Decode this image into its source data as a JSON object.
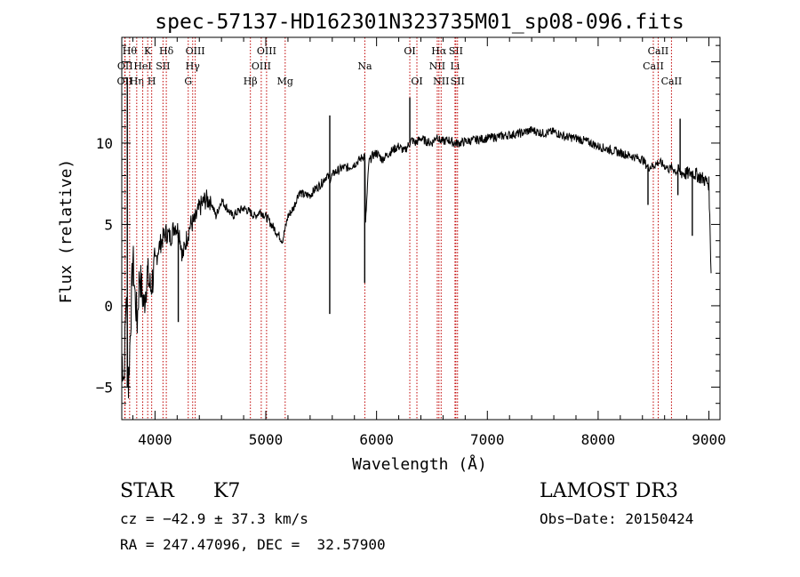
{
  "chart_data": {
    "type": "line",
    "title": "spec-57137-HD162301N323735M01_sp08-096.fits",
    "xlabel": "Wavelength (Å)",
    "ylabel": "Flux (relative)",
    "xlim": [
      3700,
      9100
    ],
    "ylim": [
      -7,
      16.5
    ],
    "xticks": [
      4000,
      5000,
      6000,
      7000,
      8000,
      9000
    ],
    "yticks": [
      -5,
      0,
      5,
      10
    ],
    "grid": false,
    "series": [
      {
        "name": "flux",
        "x": [
          3700,
          3720,
          3740,
          3760,
          3780,
          3800,
          3820,
          3840,
          3860,
          3880,
          3900,
          3930,
          3960,
          4000,
          4030,
          4060,
          4100,
          4140,
          4180,
          4220,
          4250,
          4280,
          4320,
          4360,
          4400,
          4450,
          4500,
          4550,
          4600,
          4650,
          4700,
          4750,
          4800,
          4850,
          4900,
          4950,
          5000,
          5050,
          5100,
          5150,
          5200,
          5250,
          5300,
          5350,
          5400,
          5450,
          5500,
          5550,
          5580,
          5620,
          5650,
          5700,
          5750,
          5800,
          5850,
          5895,
          5900,
          5930,
          5960,
          6000,
          6050,
          6100,
          6150,
          6200,
          6250,
          6300,
          6320,
          6350,
          6400,
          6450,
          6500,
          6550,
          6563,
          6600,
          6650,
          6700,
          6750,
          6800,
          6900,
          7000,
          7100,
          7200,
          7300,
          7400,
          7500,
          7600,
          7700,
          7800,
          7900,
          8000,
          8100,
          8200,
          8300,
          8400,
          8450,
          8498,
          8540,
          8560,
          8600,
          8640,
          8662,
          8700,
          8750,
          8800,
          8850,
          8900,
          8950,
          9000,
          9020
        ],
        "y": [
          -3,
          -4.5,
          1,
          -5,
          -1,
          3,
          0.5,
          -1,
          2,
          1,
          0,
          2,
          1,
          2.5,
          3.5,
          4,
          4.5,
          4.2,
          5,
          4.5,
          3,
          4,
          5,
          5.2,
          6,
          6.5,
          6.5,
          5.5,
          6.5,
          6,
          5.5,
          5.8,
          6,
          5.8,
          5.5,
          5.8,
          5.5,
          5,
          4.5,
          4,
          5.5,
          6,
          7,
          6.8,
          6.8,
          7.2,
          7.5,
          8,
          7.8,
          8.2,
          8.3,
          8.5,
          8.5,
          8.7,
          9,
          9.3,
          5,
          8.8,
          9.2,
          9.4,
          9,
          9.3,
          9.6,
          9.8,
          9.5,
          10,
          10.2,
          10,
          10.3,
          10.1,
          10,
          10.5,
          10.2,
          10.1,
          10.2,
          10,
          10,
          10.1,
          10.2,
          10.3,
          10.4,
          10.5,
          10.6,
          10.8,
          10.6,
          10.7,
          10.4,
          10.3,
          10.1,
          9.8,
          9.6,
          9.4,
          9.2,
          9,
          8.5,
          8.6,
          8.8,
          8.8,
          8.6,
          8.4,
          8.5,
          8.3,
          8.2,
          8.1,
          8.2,
          8.0,
          7.8,
          7.5,
          2
        ]
      }
    ],
    "spikes": [
      {
        "x": 3750,
        "y": 14.0
      },
      {
        "x": 5577,
        "y": -0.5
      },
      {
        "x": 5577.5,
        "y": 11.7
      },
      {
        "x": 5893,
        "y": 1.4
      },
      {
        "x": 6300,
        "y": 12.8
      },
      {
        "x": 8450,
        "y": 6.2
      },
      {
        "x": 8740,
        "y": 11.5
      },
      {
        "x": 8720,
        "y": 6.8
      },
      {
        "x": 8850,
        "y": 4.3
      },
      {
        "x": 4210,
        "y": -1.0
      }
    ],
    "lines": [
      {
        "x": 3727,
        "label": "OII",
        "row": 3
      },
      {
        "x": 3730,
        "label": "OII",
        "row": 2
      },
      {
        "x": 3771,
        "label": "Hθ",
        "row": 1
      },
      {
        "x": 3835,
        "label": "Hη",
        "row": 3
      },
      {
        "x": 3889,
        "label": "HeI",
        "row": 2
      },
      {
        "x": 3934,
        "label": "K",
        "row": 1
      },
      {
        "x": 3970,
        "label": "H",
        "row": 3
      },
      {
        "x": 4072,
        "label": "SII",
        "row": 2
      },
      {
        "x": 4102,
        "label": "Hδ",
        "row": 1
      },
      {
        "x": 4300,
        "label": "G",
        "row": 3
      },
      {
        "x": 4340,
        "label": "Hγ",
        "row": 2
      },
      {
        "x": 4363,
        "label": "OIII",
        "row": 1
      },
      {
        "x": 4861,
        "label": "Hβ",
        "row": 3
      },
      {
        "x": 4959,
        "label": "OIII",
        "row": 2
      },
      {
        "x": 5007,
        "label": "OIII",
        "row": 1
      },
      {
        "x": 5175,
        "label": "Mg",
        "row": 3
      },
      {
        "x": 5894,
        "label": "Na",
        "row": 2
      },
      {
        "x": 6300,
        "label": "OI",
        "row": 1
      },
      {
        "x": 6364,
        "label": "OI",
        "row": 3
      },
      {
        "x": 6548,
        "label": "NII",
        "row": 2
      },
      {
        "x": 6563,
        "label": "Hα",
        "row": 1
      },
      {
        "x": 6583,
        "label": "NII",
        "row": 3
      },
      {
        "x": 6708,
        "label": "Li",
        "row": 2
      },
      {
        "x": 6716,
        "label": "SII",
        "row": 1
      },
      {
        "x": 6731,
        "label": "SII",
        "row": 3
      },
      {
        "x": 8498,
        "label": "CaII",
        "row": 2
      },
      {
        "x": 8542,
        "label": "CaII",
        "row": 1
      },
      {
        "x": 8662,
        "label": "CaII",
        "row": 3
      }
    ]
  },
  "footer": {
    "class_label": "STAR",
    "subclass": "K7",
    "survey": "LAMOST DR3",
    "cz": "cz = −42.9 ± 37.3 km/s",
    "obs_date": "Obs−Date: 20150424",
    "coords": "RA = 247.47096, DEC =  32.57900"
  }
}
